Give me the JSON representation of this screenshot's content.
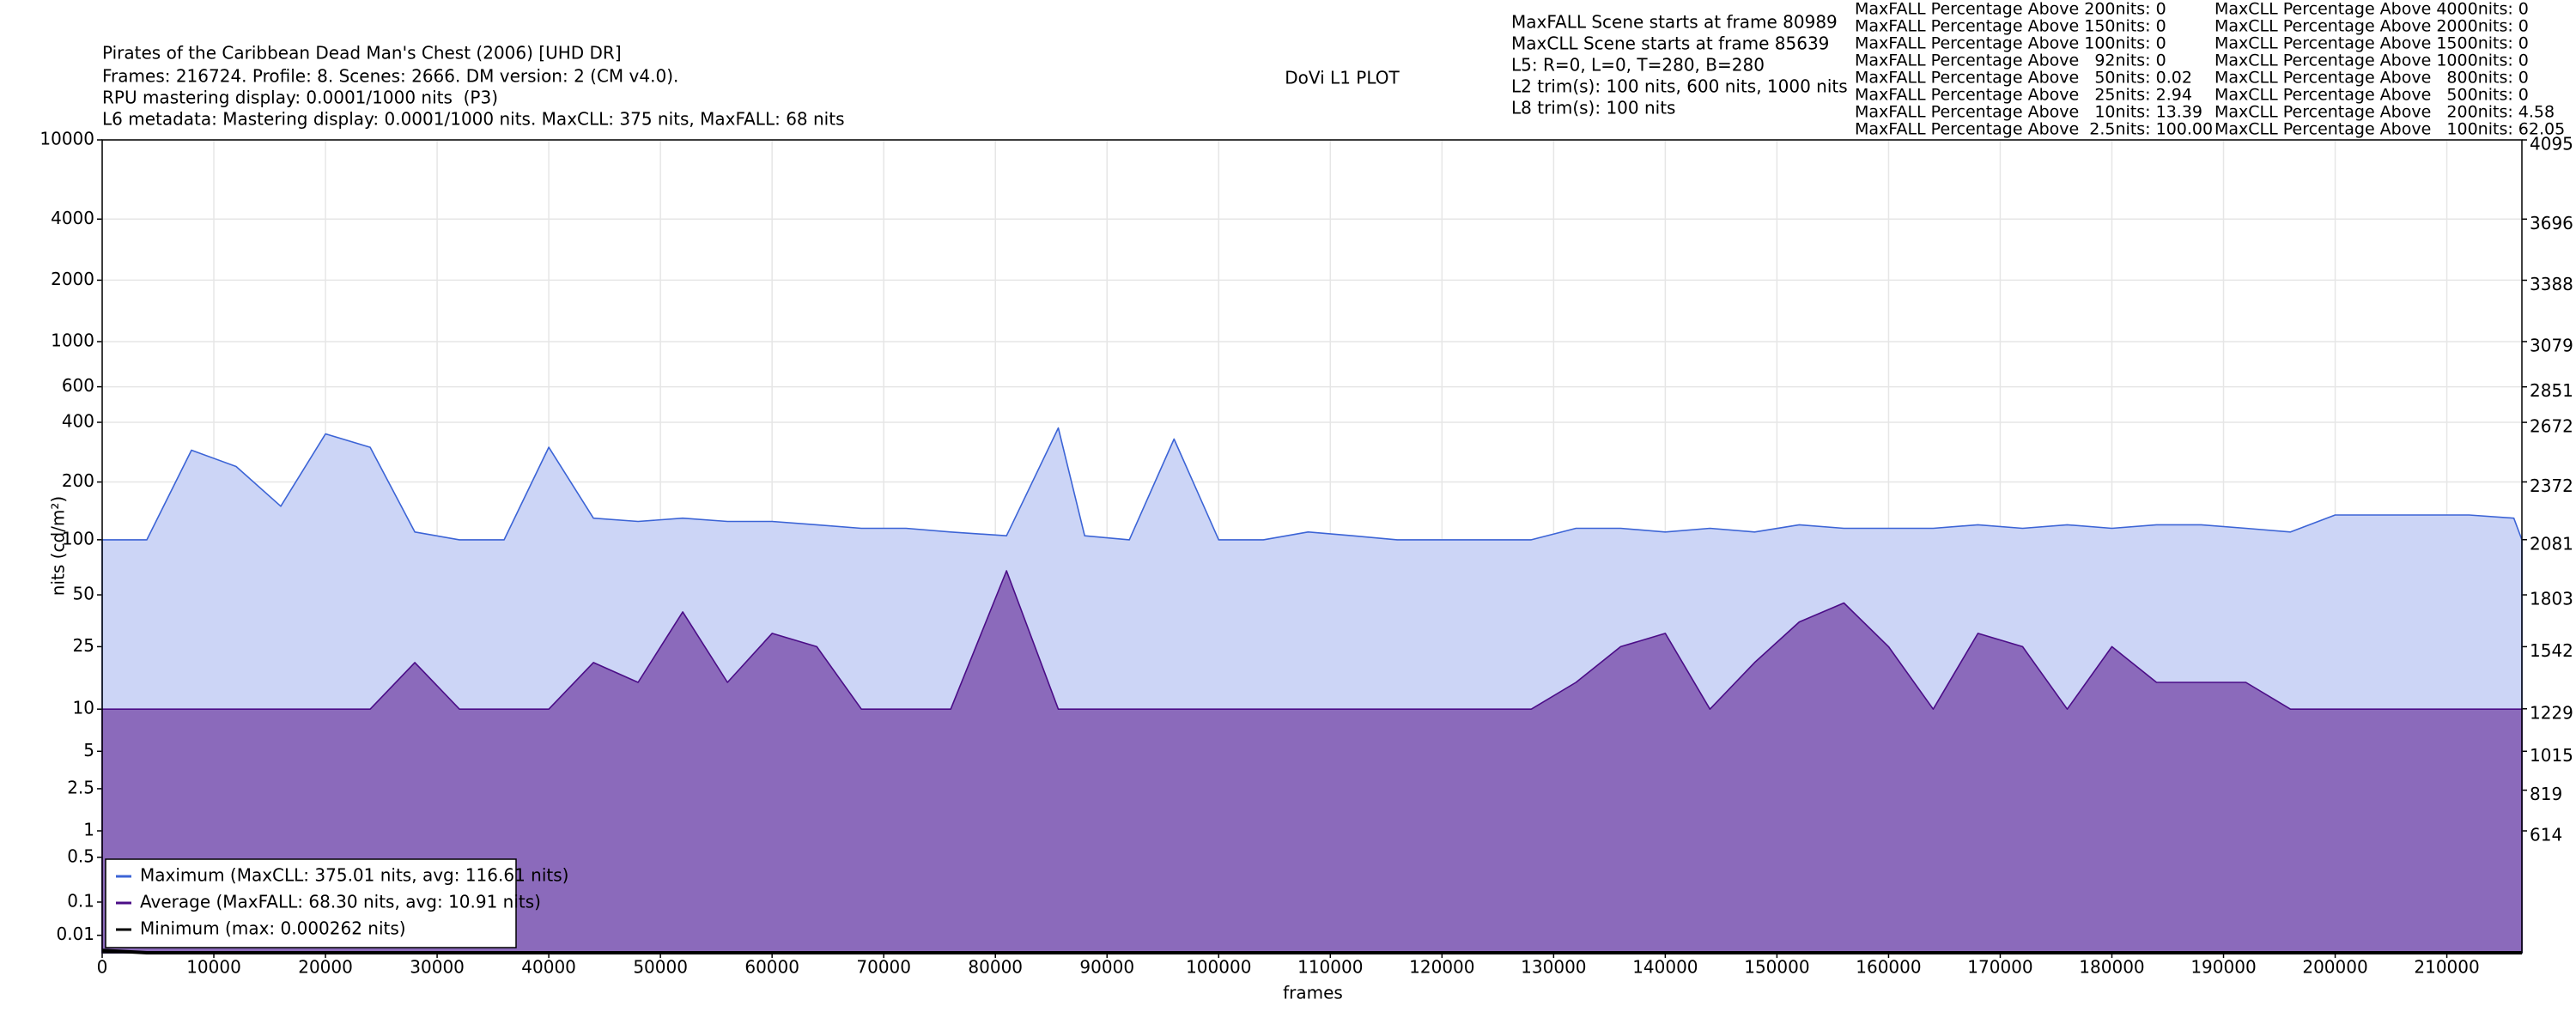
{
  "chart_data": {
    "type": "area",
    "title": "Pirates of the Caribbean Dead Man's Chest (2006) [UHD DR]",
    "info_left": [
      "Frames: 216724. Profile: 8. Scenes: 2666. DM version: 2 (CM v4.0).",
      "RPU mastering display: 0.0001/1000 nits  (P3)",
      "L6 metadata: Mastering display: 0.0001/1000 nits. MaxCLL: 375 nits, MaxFALL: 68 nits"
    ],
    "plot_title": "DoVi L1 PLOT",
    "info_center": [
      "MaxFALL Scene starts at frame 80989",
      "MaxCLL Scene starts at frame 85639",
      "L5: R=0, L=0, T=280, B=280",
      "L2 trim(s): 100 nits, 600 nits, 1000 nits",
      "L8 trim(s): 100 nits"
    ],
    "maxfall_stats": [
      "MaxFALL Percentage Above 200nits: 0",
      "MaxFALL Percentage Above 150nits: 0",
      "MaxFALL Percentage Above 100nits: 0",
      "MaxFALL Percentage Above   92nits: 0",
      "MaxFALL Percentage Above   50nits: 0.02",
      "MaxFALL Percentage Above   25nits: 2.94",
      "MaxFALL Percentage Above   10nits: 13.39",
      "MaxFALL Percentage Above  2.5nits: 100.00"
    ],
    "maxcll_stats": [
      "MaxCLL Percentage Above 4000nits: 0",
      "MaxCLL Percentage Above 2000nits: 0",
      "MaxCLL Percentage Above 1500nits: 0",
      "MaxCLL Percentage Above 1000nits: 0",
      "MaxCLL Percentage Above   800nits: 0",
      "MaxCLL Percentage Above   500nits: 0",
      "MaxCLL Percentage Above   200nits: 4.58",
      "MaxCLL Percentage Above   100nits: 62.05"
    ],
    "x_label": "frames",
    "y_label": "nits (cd/m²)",
    "y_scale": "pq",
    "grid": true,
    "legend": "lower left",
    "x": [
      0,
      4000,
      8000,
      12000,
      16000,
      20000,
      24000,
      28000,
      32000,
      36000,
      40000,
      44000,
      48000,
      52000,
      56000,
      60000,
      64000,
      68000,
      72000,
      76000,
      81000,
      85639,
      88000,
      92000,
      96000,
      100000,
      104000,
      108000,
      112000,
      116000,
      120000,
      124000,
      128000,
      132000,
      136000,
      140000,
      144000,
      148000,
      152000,
      156000,
      160000,
      164000,
      168000,
      172000,
      176000,
      180000,
      184000,
      188000,
      192000,
      196000,
      200000,
      204000,
      208000,
      212000,
      216000,
      216724
    ],
    "series": [
      {
        "name": "Maximum (MaxCLL: 375.01 nits, avg: 116.61 nits)",
        "color": "#3c64d6",
        "fill": "#ccd5f6",
        "values": [
          100,
          100,
          290,
          240,
          150,
          350,
          300,
          110,
          100,
          100,
          300,
          130,
          125,
          130,
          125,
          125,
          120,
          115,
          115,
          110,
          105,
          375,
          105,
          100,
          330,
          100,
          100,
          110,
          105,
          100,
          100,
          100,
          100,
          115,
          115,
          110,
          115,
          110,
          120,
          115,
          115,
          115,
          120,
          115,
          120,
          115,
          120,
          120,
          115,
          110,
          135,
          135,
          135,
          135,
          130,
          100
        ]
      },
      {
        "name": "Average (MaxFALL: 68.30 nits, avg: 10.91 nits)",
        "color": "#4b0d87",
        "fill": "#8b6abb",
        "values": [
          10,
          10,
          10,
          10,
          10,
          10,
          10,
          20,
          10,
          10,
          10,
          20,
          15,
          40,
          15,
          30,
          25,
          10,
          10,
          10,
          68,
          10,
          10,
          10,
          10,
          10,
          10,
          10,
          10,
          10,
          10,
          10,
          10,
          15,
          25,
          30,
          10,
          20,
          35,
          45,
          25,
          10,
          30,
          25,
          10,
          25,
          15,
          15,
          15,
          10,
          10,
          10,
          10,
          10,
          10,
          10
        ]
      },
      {
        "name": "Minimum (max: 0.000262 nits)",
        "color": "#000000",
        "values": [
          0.000262,
          0,
          0,
          0,
          0,
          0,
          0,
          0,
          0,
          0,
          0,
          0,
          0,
          0,
          0,
          0,
          0,
          0,
          0,
          0,
          0,
          0,
          0,
          0,
          0,
          0,
          0,
          0,
          0,
          0,
          0,
          0,
          0,
          0,
          0,
          0,
          0,
          0,
          0,
          0,
          0,
          0,
          0,
          0,
          0,
          0,
          0,
          0,
          0,
          0,
          0,
          0,
          0,
          0,
          0,
          0
        ]
      }
    ],
    "xlim": [
      0,
      216724
    ],
    "xticks": [
      0,
      10000,
      20000,
      30000,
      40000,
      50000,
      60000,
      70000,
      80000,
      90000,
      100000,
      110000,
      120000,
      130000,
      140000,
      150000,
      160000,
      170000,
      180000,
      190000,
      200000,
      210000
    ],
    "ylim": [
      0,
      10000
    ],
    "yticks": [
      0.01,
      0.1,
      0.5,
      1,
      2.5,
      5,
      10,
      25,
      50,
      100,
      200,
      400,
      600,
      1000,
      2000,
      4000,
      10000
    ],
    "y2lim": [
      0,
      4095
    ],
    "y2ticks": [
      614,
      819,
      1015,
      1229,
      1542,
      1803,
      2081,
      2372,
      2672,
      2851,
      3079,
      3388,
      3696,
      4095
    ]
  }
}
